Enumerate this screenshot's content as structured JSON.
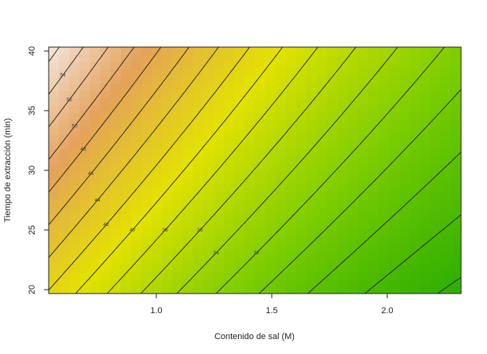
{
  "chart_data": {
    "type": "heatmap",
    "subtype": "contour",
    "title": "",
    "xlabel": "Contenido de sal (M)",
    "ylabel": "Tiempo de extracción (min)",
    "xlim": [
      0.55,
      2.3
    ],
    "ylim": [
      19.5,
      40.2
    ],
    "xticks": [
      "1.0",
      "1.5",
      "2.0"
    ],
    "yticks": [
      "20",
      "25",
      "30",
      "35",
      "40"
    ],
    "contour_levels": [
      22,
      24,
      26,
      28,
      30,
      32,
      34,
      36,
      38,
      40,
      42,
      44,
      46,
      48,
      50,
      52,
      54,
      56
    ],
    "contour_labels": [
      "56",
      "54",
      "52",
      "50",
      "48",
      "46",
      "44",
      "42",
      "40",
      "38",
      "36",
      "34",
      "32"
    ],
    "color_scale": [
      "#1fa800",
      "#7ccd00",
      "#e4e200",
      "#e4a25a",
      "#f6f0f0"
    ],
    "z_range": [
      22,
      58
    ],
    "grid": false,
    "legend": "none"
  }
}
